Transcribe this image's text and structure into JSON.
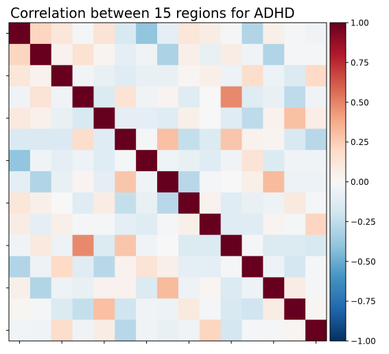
{
  "chart_data": {
    "type": "heatmap",
    "title": "Correlation between 15 regions for ADHD",
    "xlabel": "",
    "ylabel": "",
    "n": 15,
    "colormap": "RdBu_r",
    "vmin": -1.0,
    "vmax": 1.0,
    "colorbar_ticks": [
      1.0,
      0.75,
      0.5,
      0.25,
      0.0,
      -0.25,
      -0.5,
      -0.75,
      -1.0
    ],
    "colorbar_tick_labels": [
      "1.00",
      "0.75",
      "0.50",
      "0.25",
      "0.00",
      "−0.25",
      "−0.50",
      "−0.75",
      "−1.00"
    ],
    "grid": false,
    "values": [
      [
        1.0,
        0.22,
        0.12,
        -0.02,
        0.14,
        -0.16,
        -0.4,
        -0.1,
        0.12,
        0.08,
        -0.02,
        -0.3,
        0.06,
        -0.02,
        -0.04
      ],
      [
        0.22,
        1.0,
        0.04,
        0.15,
        0.03,
        -0.1,
        -0.04,
        -0.32,
        0.06,
        -0.08,
        0.08,
        -0.04,
        -0.3,
        -0.02,
        -0.02
      ],
      [
        0.12,
        0.04,
        1.0,
        -0.03,
        -0.08,
        -0.12,
        -0.08,
        -0.08,
        0.02,
        0.06,
        -0.06,
        0.18,
        -0.06,
        -0.14,
        0.2
      ],
      [
        -0.04,
        0.14,
        -0.04,
        1.0,
        -0.14,
        0.14,
        -0.04,
        0.03,
        -0.12,
        0.0,
        0.48,
        -0.12,
        -0.08,
        -0.26,
        -0.04
      ],
      [
        0.1,
        0.05,
        -0.08,
        -0.16,
        1.0,
        -0.1,
        -0.1,
        -0.12,
        0.06,
        0.0,
        -0.12,
        -0.26,
        0.04,
        0.3,
        0.07
      ],
      [
        -0.15,
        -0.15,
        -0.15,
        0.18,
        -0.12,
        1.0,
        -0.02,
        0.3,
        -0.24,
        -0.14,
        0.28,
        0.04,
        0.03,
        -0.16,
        -0.28
      ],
      [
        -0.4,
        -0.04,
        -0.1,
        -0.06,
        -0.12,
        -0.02,
        1.0,
        -0.05,
        -0.08,
        -0.12,
        -0.04,
        0.14,
        -0.14,
        -0.04,
        -0.04
      ],
      [
        -0.1,
        -0.3,
        -0.08,
        0.03,
        -0.1,
        0.28,
        -0.05,
        1.0,
        -0.28,
        -0.02,
        0.0,
        0.06,
        0.32,
        -0.06,
        -0.06
      ],
      [
        0.12,
        0.06,
        0.0,
        -0.12,
        0.08,
        -0.24,
        -0.08,
        -0.28,
        1.0,
        0.04,
        -0.12,
        -0.08,
        -0.06,
        0.1,
        -0.02
      ],
      [
        0.08,
        -0.1,
        0.06,
        -0.02,
        -0.02,
        -0.1,
        -0.12,
        -0.02,
        0.06,
        1.0,
        -0.12,
        -0.12,
        0.03,
        -0.02,
        0.22
      ],
      [
        -0.04,
        0.1,
        -0.06,
        0.48,
        -0.14,
        0.28,
        -0.04,
        0.0,
        -0.14,
        -0.14,
        1.0,
        -0.02,
        -0.14,
        -0.14,
        -0.16
      ],
      [
        -0.3,
        -0.06,
        0.2,
        -0.12,
        -0.28,
        0.04,
        0.14,
        0.06,
        -0.1,
        -0.1,
        -0.02,
        1.0,
        -0.06,
        -0.18,
        -0.02
      ],
      [
        0.06,
        -0.3,
        -0.06,
        -0.08,
        0.04,
        0.04,
        -0.14,
        0.32,
        -0.06,
        0.02,
        -0.14,
        -0.06,
        1.0,
        0.08,
        -0.02
      ],
      [
        0.02,
        -0.02,
        -0.14,
        -0.24,
        0.3,
        -0.2,
        -0.04,
        -0.06,
        0.1,
        -0.02,
        -0.16,
        -0.2,
        0.08,
        1.0,
        0.02
      ],
      [
        -0.03,
        -0.04,
        0.18,
        -0.04,
        0.08,
        -0.28,
        -0.04,
        -0.08,
        -0.04,
        0.22,
        -0.18,
        -0.02,
        -0.02,
        0.02,
        1.0
      ]
    ]
  }
}
